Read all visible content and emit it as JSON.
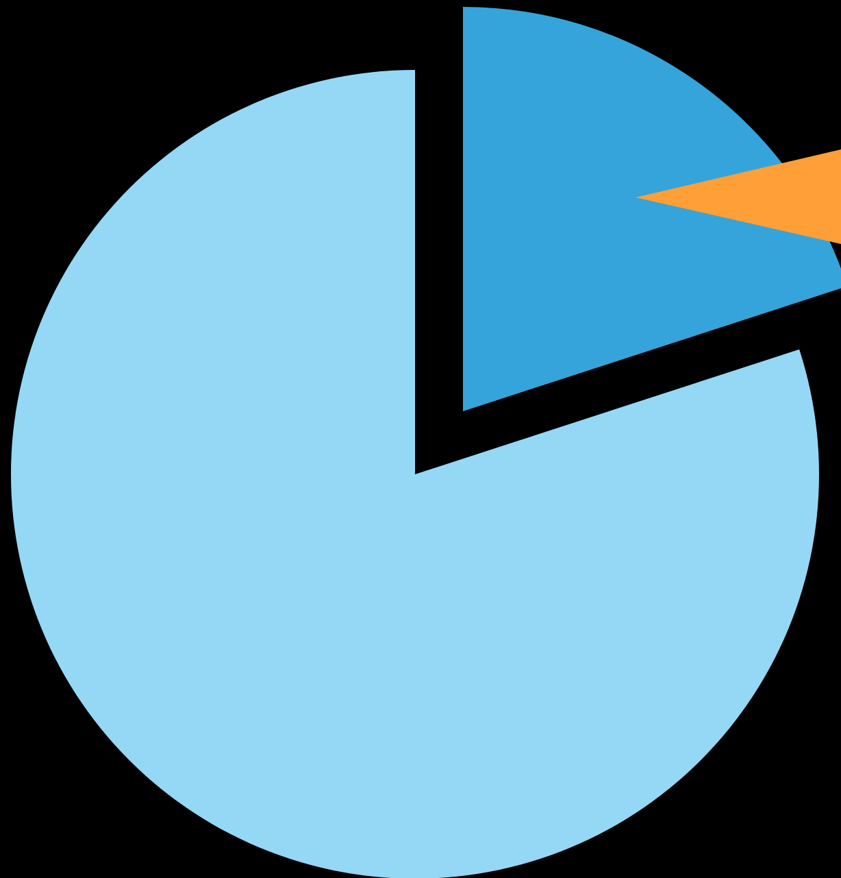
{
  "chart_data": {
    "type": "pie",
    "title": "",
    "legend": "none",
    "labels": "none",
    "slices": [
      {
        "value": 20,
        "color": "#35a4db",
        "exploded": true
      },
      {
        "value": 80,
        "color": "#94d8f6",
        "exploded": false
      }
    ]
  },
  "pointer": {
    "icon": "pointer-icon",
    "color": "#ff9f37"
  },
  "colors": {
    "background": "#000000"
  }
}
